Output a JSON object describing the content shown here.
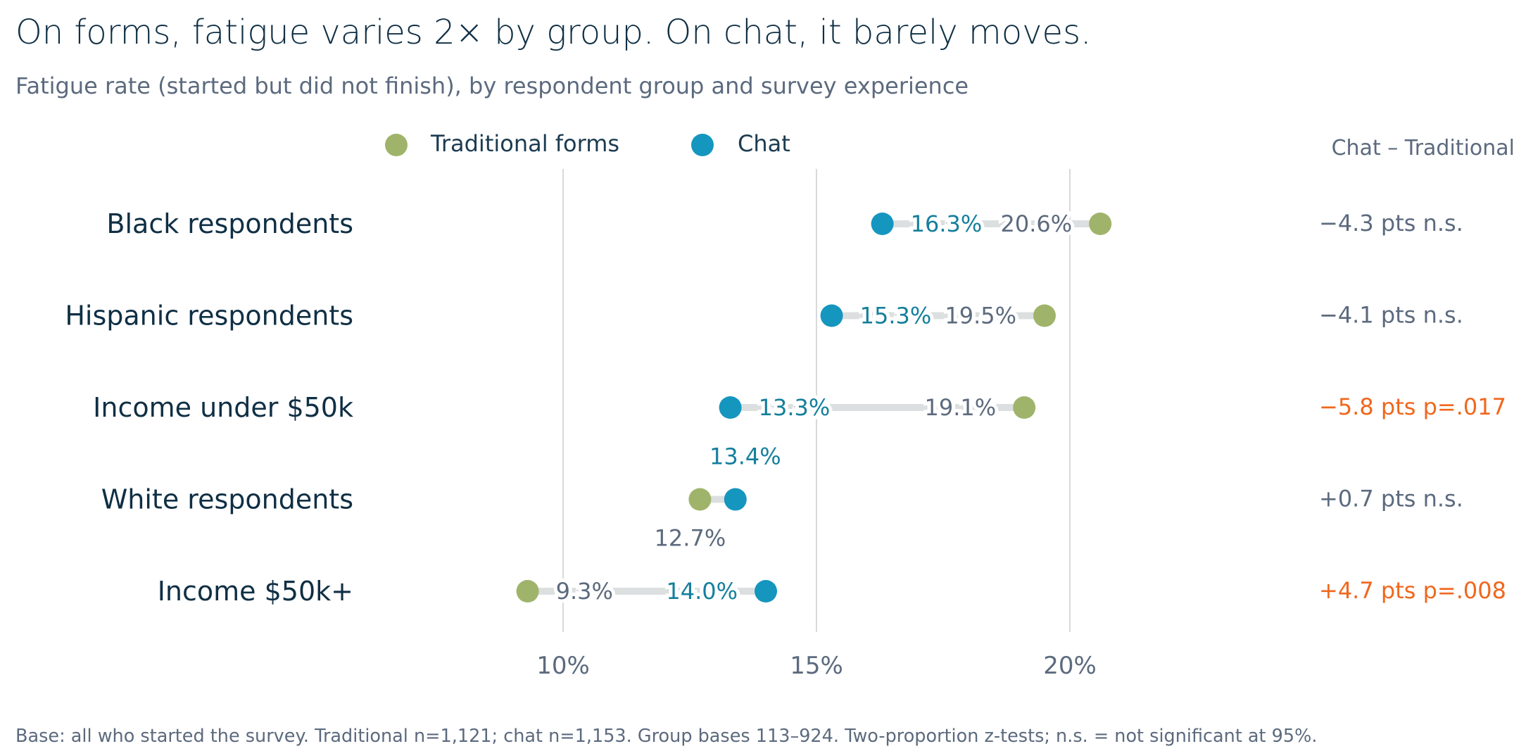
{
  "title": "On forms, fatigue varies 2× by group. On chat, it barely moves.",
  "subtitle": "Fatigue rate (started but did not finish), by respondent group and survey experience",
  "legend": {
    "items": [
      {
        "label": "Traditional forms",
        "color": "#9fb46a"
      },
      {
        "label": "Chat",
        "color": "#1596bf"
      }
    ]
  },
  "delta_header": "Chat – Traditional",
  "footnote": "Base: all who started the survey. Traditional n=1,121; chat n=1,153. Group bases 113–924. Two-proportion z-tests; n.s. = not significant at 95%.",
  "colors": {
    "traditional": "#9fb46a",
    "chat": "#1596bf",
    "chat_label": "#157f9c",
    "traditional_label": "#5c6a7e",
    "significant": "#f0671d",
    "not_significant": "#5c6a7e",
    "connector": "#dcdfe0",
    "gridline": "#d9d9d9"
  },
  "chart_data": {
    "type": "dumbbell",
    "xlim": [
      6,
      25
    ],
    "x_ticks": [
      10,
      15,
      20
    ],
    "x_tick_labels": [
      "10%",
      "15%",
      "20%"
    ],
    "grid": true,
    "legend_position": "top",
    "categories": [
      "Black respondents",
      "Hispanic respondents",
      "Income under $50k",
      "White respondents",
      "Income $50k+"
    ],
    "series": [
      {
        "name": "Traditional forms",
        "values": [
          20.6,
          19.5,
          19.1,
          12.7,
          9.3
        ]
      },
      {
        "name": "Chat",
        "values": [
          16.3,
          15.3,
          13.3,
          13.4,
          14.0
        ]
      }
    ],
    "data_labels": {
      "traditional": [
        "20.6%",
        "19.5%",
        "19.1%",
        "12.7%",
        "9.3%"
      ],
      "chat": [
        "16.3%",
        "15.3%",
        "13.3%",
        "13.4%",
        "14.0%"
      ]
    },
    "deltas": [
      {
        "value": "−4.3 pts",
        "significance": "n.s.",
        "significant": false
      },
      {
        "value": "−4.1 pts",
        "significance": "n.s.",
        "significant": false
      },
      {
        "value": "−5.8 pts",
        "significance": "p=.017",
        "significant": true
      },
      {
        "value": "+0.7 pts",
        "significance": "n.s.",
        "significant": false
      },
      {
        "value": "+4.7 pts",
        "significance": "p=.008",
        "significant": true
      }
    ]
  }
}
